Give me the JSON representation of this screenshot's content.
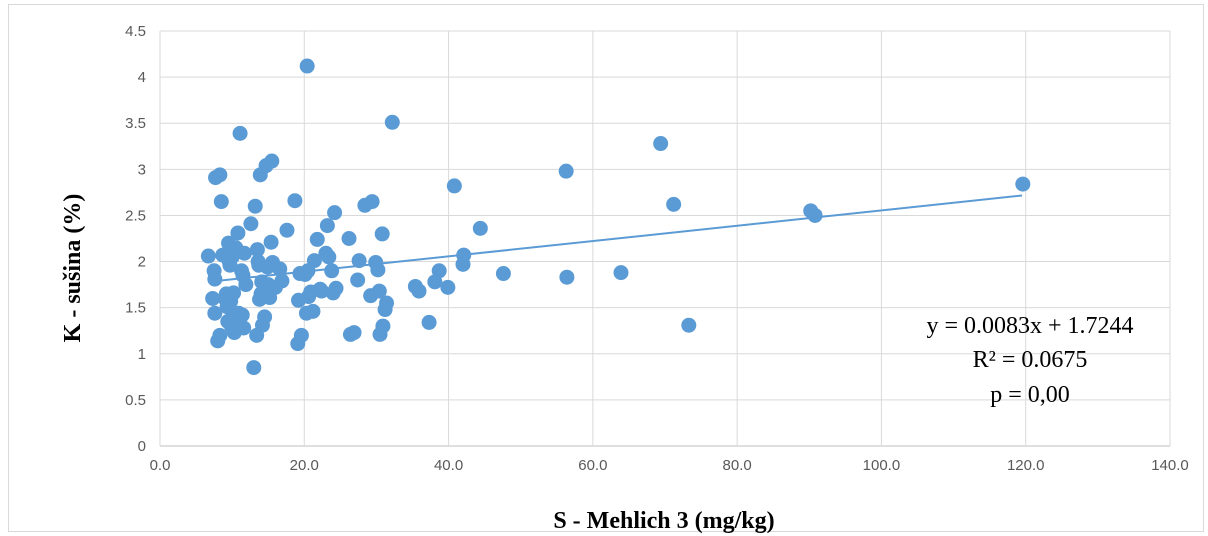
{
  "chart_data": {
    "type": "scatter",
    "xlabel": "S - Mehlich 3 (mg/kg)",
    "ylabel": "K - sušina (%)",
    "xlim": [
      0,
      140
    ],
    "ylim": [
      0,
      4.5
    ],
    "x_ticks": [
      "0.0",
      "20.0",
      "40.0",
      "60.0",
      "80.0",
      "100.0",
      "120.0",
      "140.0"
    ],
    "y_ticks": [
      "0",
      "0.5",
      "1",
      "1.5",
      "2",
      "2.5",
      "3",
      "3.5",
      "4",
      "4.5"
    ],
    "grid": true,
    "legend": "none",
    "colors": {
      "points": "#5b9bd5",
      "trendline": "#5b9bd5",
      "grid": "#d9d9d9"
    },
    "trendline": {
      "type": "linear",
      "slope": 0.0083,
      "intercept": 1.7244,
      "x_range": [
        7,
        119.5
      ]
    },
    "annotations": [
      "y = 0.0083x + 1.7244",
      "R² = 0.0675",
      "p = 0,00"
    ],
    "points": [
      [
        6.7,
        2.06
      ],
      [
        7.3,
        1.6
      ],
      [
        7.5,
        1.9
      ],
      [
        7.6,
        1.81
      ],
      [
        7.6,
        1.44
      ],
      [
        7.7,
        2.91
      ],
      [
        8.0,
        1.14
      ],
      [
        8.3,
        2.94
      ],
      [
        8.3,
        1.2
      ],
      [
        8.5,
        2.65
      ],
      [
        8.7,
        2.07
      ],
      [
        9.0,
        1.6
      ],
      [
        9.2,
        1.65
      ],
      [
        9.3,
        1.51
      ],
      [
        9.4,
        1.35
      ],
      [
        9.5,
        2.2
      ],
      [
        9.6,
        2.0
      ],
      [
        9.7,
        2.13
      ],
      [
        9.7,
        1.96
      ],
      [
        9.8,
        1.57
      ],
      [
        9.9,
        1.3
      ],
      [
        10.0,
        1.39
      ],
      [
        10.0,
        2.05
      ],
      [
        10.2,
        1.66
      ],
      [
        10.3,
        1.23
      ],
      [
        10.4,
        1.37
      ],
      [
        10.5,
        2.15
      ],
      [
        10.8,
        2.31
      ],
      [
        10.9,
        1.44
      ],
      [
        11.0,
        1.28
      ],
      [
        11.1,
        3.39
      ],
      [
        11.3,
        1.9
      ],
      [
        11.4,
        1.42
      ],
      [
        11.5,
        1.85
      ],
      [
        11.6,
        1.28
      ],
      [
        11.7,
        2.09
      ],
      [
        11.9,
        1.75
      ],
      [
        12.6,
        2.41
      ],
      [
        13.0,
        0.85
      ],
      [
        13.2,
        2.6
      ],
      [
        13.4,
        1.2
      ],
      [
        13.5,
        2.13
      ],
      [
        13.6,
        2.0
      ],
      [
        13.7,
        1.96
      ],
      [
        13.8,
        1.59
      ],
      [
        13.9,
        2.94
      ],
      [
        14.0,
        1.65
      ],
      [
        14.1,
        1.78
      ],
      [
        14.2,
        1.31
      ],
      [
        14.5,
        1.4
      ],
      [
        14.7,
        3.04
      ],
      [
        14.9,
        1.94
      ],
      [
        15.0,
        1.75
      ],
      [
        15.2,
        1.61
      ],
      [
        15.4,
        2.21
      ],
      [
        15.5,
        3.09
      ],
      [
        15.6,
        1.99
      ],
      [
        16.0,
        1.72
      ],
      [
        16.6,
        1.92
      ],
      [
        16.9,
        1.79
      ],
      [
        17.6,
        2.34
      ],
      [
        18.7,
        2.66
      ],
      [
        19.1,
        1.11
      ],
      [
        19.2,
        1.58
      ],
      [
        19.4,
        1.87
      ],
      [
        19.6,
        1.2
      ],
      [
        20.1,
        1.86
      ],
      [
        20.3,
        1.44
      ],
      [
        20.4,
        4.12
      ],
      [
        20.5,
        1.9
      ],
      [
        20.6,
        1.62
      ],
      [
        20.9,
        1.67
      ],
      [
        21.2,
        1.46
      ],
      [
        21.4,
        2.01
      ],
      [
        21.8,
        2.24
      ],
      [
        22.2,
        1.7
      ],
      [
        22.4,
        1.68
      ],
      [
        23.0,
        2.09
      ],
      [
        23.2,
        2.39
      ],
      [
        23.4,
        2.05
      ],
      [
        23.8,
        1.9
      ],
      [
        24.0,
        1.66
      ],
      [
        24.2,
        2.53
      ],
      [
        24.4,
        1.71
      ],
      [
        26.2,
        2.25
      ],
      [
        26.4,
        1.21
      ],
      [
        26.9,
        1.23
      ],
      [
        27.4,
        1.8
      ],
      [
        27.6,
        2.01
      ],
      [
        28.4,
        2.61
      ],
      [
        29.2,
        1.63
      ],
      [
        29.4,
        2.65
      ],
      [
        29.9,
        1.99
      ],
      [
        30.2,
        1.91
      ],
      [
        30.4,
        1.68
      ],
      [
        30.5,
        1.21
      ],
      [
        30.8,
        2.3
      ],
      [
        30.9,
        1.3
      ],
      [
        31.2,
        1.48
      ],
      [
        31.4,
        1.55
      ],
      [
        32.2,
        3.51
      ],
      [
        35.4,
        1.73
      ],
      [
        35.9,
        1.68
      ],
      [
        37.3,
        1.34
      ],
      [
        38.1,
        1.78
      ],
      [
        38.7,
        1.9
      ],
      [
        39.9,
        1.72
      ],
      [
        40.8,
        2.82
      ],
      [
        42.0,
        1.97
      ],
      [
        42.1,
        2.07
      ],
      [
        44.4,
        2.36
      ],
      [
        47.6,
        1.87
      ],
      [
        56.3,
        2.98
      ],
      [
        56.4,
        1.83
      ],
      [
        63.9,
        1.88
      ],
      [
        69.4,
        3.28
      ],
      [
        71.2,
        2.62
      ],
      [
        73.3,
        1.31
      ],
      [
        90.2,
        2.55
      ],
      [
        90.8,
        2.5
      ],
      [
        119.6,
        2.84
      ]
    ]
  }
}
